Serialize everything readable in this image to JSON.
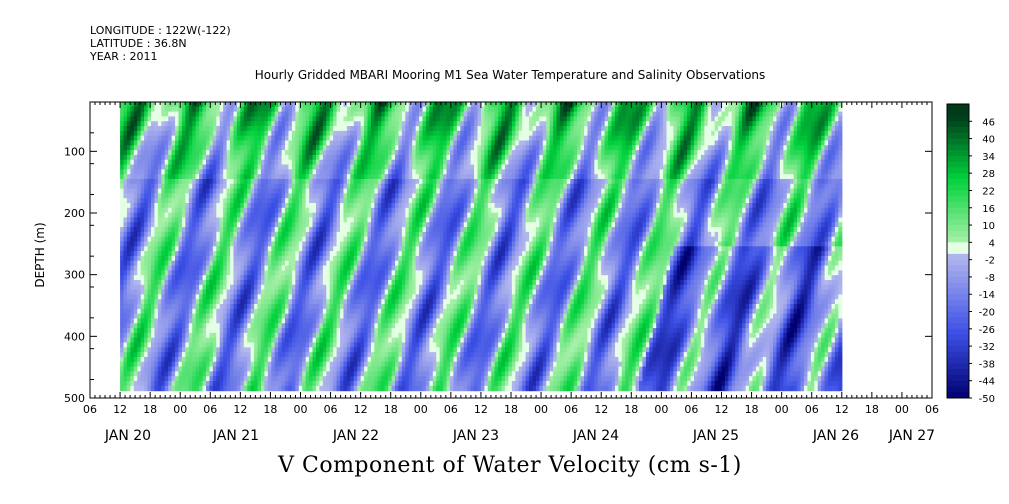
{
  "header": {
    "longitude": "LONGITUDE : 122W(-122)",
    "latitude": "LATITUDE : 36.8N",
    "year": "YEAR : 2011"
  },
  "colors": {
    "negative_light": "#b4b8ee",
    "negative_dark": "#000070",
    "positive_light": "#a8f0a8",
    "positive_dark": "#003a1a",
    "zero": "#dfffdf"
  },
  "chart_data": {
    "type": "heatmap",
    "title": "Hourly Gridded MBARI Mooring M1 Sea Water Temperature and Salinity Observations",
    "variable_title": "V Component of Water Velocity (cm s-1)",
    "ylabel": "DEPTH (m)",
    "xlabel": "",
    "ylim": [
      500,
      20
    ],
    "y_ticks": [
      100,
      200,
      300,
      400,
      500
    ],
    "data_extent": {
      "depth_min": 20,
      "depth_max": 488,
      "start": "JAN 20 12:00",
      "end": "JAN 27 06:00"
    },
    "x_hour_ticks": [
      "06",
      "12",
      "18",
      "00",
      "06",
      "12",
      "18",
      "00",
      "06",
      "12",
      "18",
      "00",
      "06",
      "12",
      "18",
      "00",
      "06",
      "12",
      "18",
      "00",
      "06",
      "12",
      "18",
      "00",
      "06",
      "12",
      "18",
      "00",
      "06"
    ],
    "x_day_labels": [
      "JAN 20",
      "JAN 21",
      "JAN 22",
      "JAN 23",
      "JAN 24",
      "JAN 25",
      "JAN 26",
      "JAN 27"
    ],
    "colorbar_levels": [
      46,
      40,
      34,
      28,
      22,
      16,
      10,
      4,
      -2,
      -8,
      -14,
      -20,
      -26,
      -32,
      -38,
      -44,
      -50
    ],
    "colorbar_range": [
      -50,
      52
    ],
    "grid": false,
    "legend": "right colorbar"
  }
}
